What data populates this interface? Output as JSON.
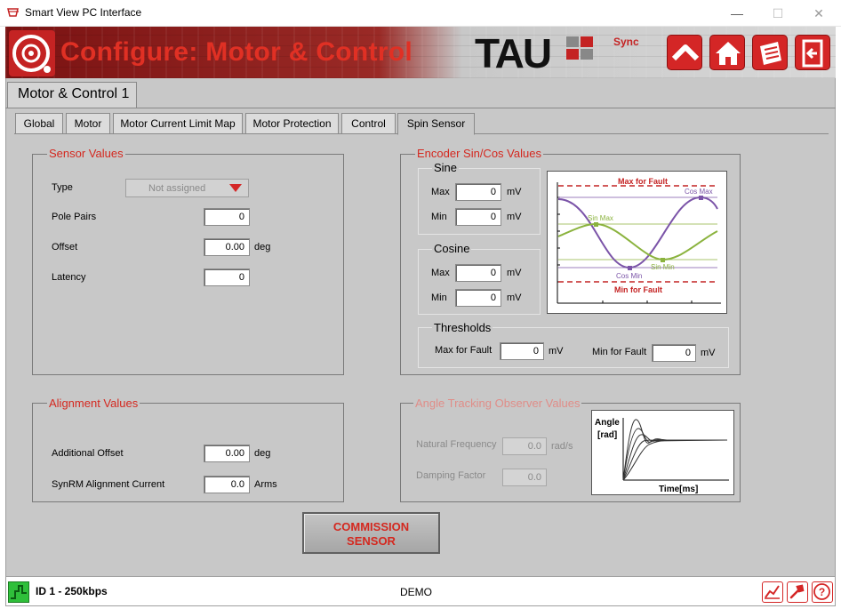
{
  "window": {
    "title": "Smart View PC Interface",
    "minimize": "—",
    "maximize": "☐",
    "close": "✕"
  },
  "header": {
    "title": "Configure: Motor & Control",
    "brand": "TAU",
    "brand_suffix": "Sync",
    "accent": "#d42626"
  },
  "subtab": {
    "label": "Motor & Control 1"
  },
  "tabs": [
    {
      "label": "Global"
    },
    {
      "label": "Motor"
    },
    {
      "label": "Motor Current Limit Map"
    },
    {
      "label": "Motor Protection"
    },
    {
      "label": "Control"
    },
    {
      "label": "Spin Sensor",
      "active": true
    }
  ],
  "sensor_values": {
    "title": "Sensor Values",
    "type_label": "Type",
    "type_value": "Not assigned",
    "pole_pairs_label": "Pole Pairs",
    "pole_pairs_value": "0",
    "offset_label": "Offset",
    "offset_value": "0.00",
    "offset_unit": "deg",
    "latency_label": "Latency",
    "latency_value": "0"
  },
  "encoder": {
    "title": "Encoder Sin/Cos Values",
    "sine": {
      "title": "Sine",
      "max_label": "Max",
      "max_value": "0",
      "min_label": "Min",
      "min_value": "0",
      "unit": "mV"
    },
    "cosine": {
      "title": "Cosine",
      "max_label": "Max",
      "max_value": "0",
      "min_label": "Min",
      "min_value": "0",
      "unit": "mV"
    },
    "thresholds": {
      "title": "Thresholds",
      "max_label": "Max for Fault",
      "max_value": "0",
      "min_label": "Min for Fault",
      "min_value": "0",
      "unit": "mV"
    },
    "graph": {
      "max_fault": "Max for Fault",
      "min_fault": "Min for Fault",
      "sin_max": "Sin Max",
      "sin_min": "Sin Min",
      "cos_max": "Cos Max",
      "cos_min": "Cos Min",
      "sin_color": "#8bb33e",
      "cos_color": "#7b54a8",
      "fault_color": "#c42323"
    }
  },
  "alignment": {
    "title": "Alignment Values",
    "offset_label": "Additional Offset",
    "offset_value": "0.00",
    "offset_unit": "deg",
    "current_label": "SynRM Alignment Current",
    "current_value": "0.0",
    "current_unit": "Arms"
  },
  "observer": {
    "title": "Angle Tracking Observer Values",
    "freq_label": "Natural Frequency",
    "freq_value": "0.0",
    "freq_unit": "rad/s",
    "damping_label": "Damping Factor",
    "damping_value": "0.0",
    "graph_ylabel_1": "Angle",
    "graph_ylabel_2": "[rad]",
    "graph_xlabel": "Time[ms]"
  },
  "commission": {
    "line1": "COMMISSION",
    "line2": "SENSOR"
  },
  "status": {
    "id": "ID 1 - 250kbps",
    "mode": "DEMO",
    "connected_color": "#2fbf3a"
  }
}
